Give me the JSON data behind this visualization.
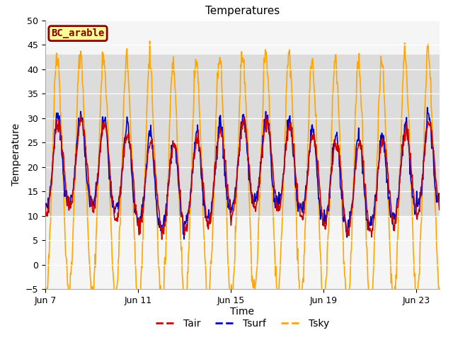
{
  "title": "Temperatures",
  "xlabel": "Time",
  "ylabel": "Temperature",
  "ylim": [
    -5,
    50
  ],
  "yticks": [
    -5,
    0,
    5,
    10,
    15,
    20,
    25,
    30,
    35,
    40,
    45,
    50
  ],
  "xtick_labels": [
    "Jun 7",
    "Jun 11",
    "Jun 15",
    "Jun 19",
    "Jun 23"
  ],
  "xtick_positions": [
    0,
    4,
    8,
    12,
    16
  ],
  "n_days": 17,
  "bg_band_ymin": 10,
  "bg_band_ymax": 43,
  "bg_color": "#dcdcdc",
  "plot_bg": "#f5f5f5",
  "legend_box_label": "BC_arable",
  "legend_box_bg": "#ffff99",
  "legend_box_edge": "#8b0000",
  "line_colors": {
    "Tair": "#cc0000",
    "Tsurf": "#0000cc",
    "Tsky": "#ffa500"
  },
  "line_widths": {
    "Tair": 1.2,
    "Tsurf": 1.2,
    "Tsky": 1.2
  },
  "title_fontsize": 11,
  "axis_label_fontsize": 10,
  "tick_fontsize": 9,
  "legend_fontsize": 10
}
